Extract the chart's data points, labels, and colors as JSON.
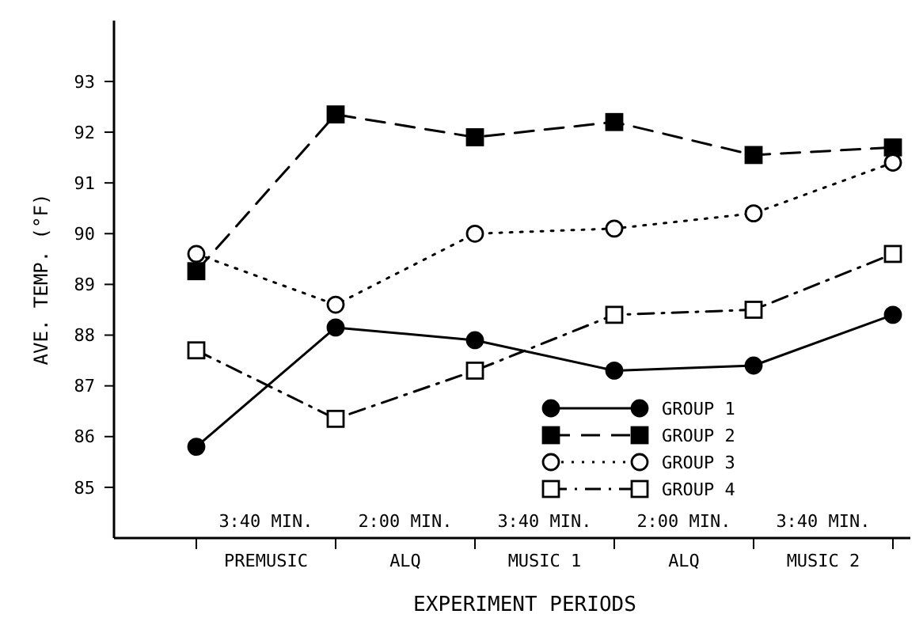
{
  "chart_data": {
    "type": "line",
    "ylabel": "AVE. TEMP. (°F)",
    "xlabel": "EXPERIMENT PERIODS",
    "categories": [
      null,
      null,
      null,
      null,
      null,
      null
    ],
    "ylim": [
      84,
      94.2
    ],
    "yticks": [
      85,
      86,
      87,
      88,
      89,
      90,
      91,
      92,
      93
    ],
    "grid": false,
    "legend": "bottom right",
    "annotations": [
      "3:40 MIN.",
      "2:00 MIN.",
      "3:40 MIN.",
      "2:00 MIN.",
      "3:40 MIN.",
      "PREMUSIC",
      "ALQ",
      "MUSIC 1",
      "ALQ",
      "MUSIC 2"
    ],
    "series": [
      {
        "name": "GROUP 1",
        "color": "#000000",
        "marker": "circle",
        "line_style": "solid",
        "values": [
          85.8,
          88.15,
          87.9,
          87.3,
          87.4,
          88.4
        ]
      },
      {
        "name": "GROUP 2",
        "color": "#000000",
        "marker": "square",
        "line_style": "dashed",
        "values": [
          89.26,
          92.35,
          91.9,
          92.2,
          91.55,
          91.7
        ]
      },
      {
        "name": "GROUP 3",
        "color": "#000000",
        "marker": "circle-open",
        "line_style": "dotted",
        "values": [
          89.6,
          88.6,
          90.0,
          90.1,
          90.4,
          91.4
        ]
      },
      {
        "name": "GROUP 4",
        "color": "#000000",
        "marker": "square-open",
        "line_style": "dash-dot",
        "values": [
          87.7,
          86.35,
          87.3,
          88.4,
          88.5,
          89.6
        ]
      }
    ]
  }
}
